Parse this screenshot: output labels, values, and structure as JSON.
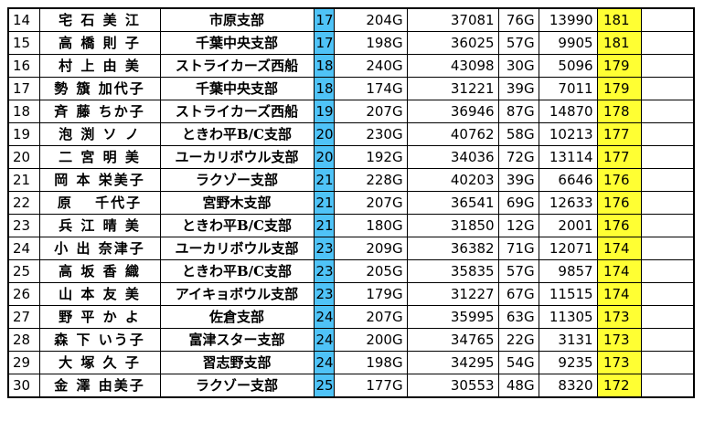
{
  "rows": [
    {
      "rank": "14",
      "name": "宅 石 美 江",
      "branch": "市原支部",
      "hdcp": "17",
      "games": "204G",
      "pins": "37081",
      "games2": "76G",
      "pins2": "13990",
      "total": "181"
    },
    {
      "rank": "15",
      "name": "高 橋 則 子",
      "branch": "千葉中央支部",
      "hdcp": "17",
      "games": "198G",
      "pins": "36025",
      "games2": "57G",
      "pins2": "9905",
      "total": "181"
    },
    {
      "rank": "16",
      "name": "村 上 由 美",
      "branch": "ストライカーズ西船",
      "hdcp": "18",
      "games": "240G",
      "pins": "43098",
      "games2": "30G",
      "pins2": "5096",
      "total": "179"
    },
    {
      "rank": "17",
      "name": "勢 籏 加代子",
      "branch": "千葉中央支部",
      "hdcp": "18",
      "games": "174G",
      "pins": "31221",
      "games2": "39G",
      "pins2": "7011",
      "total": "179"
    },
    {
      "rank": "18",
      "name": "斉 藤 ちか子",
      "branch": "ストライカーズ西船",
      "hdcp": "19",
      "games": "207G",
      "pins": "36946",
      "games2": "87G",
      "pins2": "14870",
      "total": "178"
    },
    {
      "rank": "19",
      "name": "泡 渕 ソ ノ",
      "branch": "ときわ平B/C支部",
      "hdcp": "20",
      "games": "230G",
      "pins": "40762",
      "games2": "58G",
      "pins2": "10213",
      "total": "177"
    },
    {
      "rank": "20",
      "name": "二 宮 明 美",
      "branch": "ユーカリボウル支部",
      "hdcp": "20",
      "games": "192G",
      "pins": "34036",
      "games2": "72G",
      "pins2": "13114",
      "total": "177"
    },
    {
      "rank": "21",
      "name": "岡 本 栄美子",
      "branch": "ラクゾー支部",
      "hdcp": "21",
      "games": "228G",
      "pins": "40203",
      "games2": "39G",
      "pins2": "6646",
      "total": "176"
    },
    {
      "rank": "22",
      "name": "原 　千代子",
      "branch": "宮野木支部",
      "hdcp": "21",
      "games": "207G",
      "pins": "36541",
      "games2": "69G",
      "pins2": "12633",
      "total": "176"
    },
    {
      "rank": "23",
      "name": "兵 江 晴 美",
      "branch": "ときわ平B/C支部",
      "hdcp": "21",
      "games": "180G",
      "pins": "31850",
      "games2": "12G",
      "pins2": "2001",
      "total": "176"
    },
    {
      "rank": "24",
      "name": "小 出 奈津子",
      "branch": "ユーカリボウル支部",
      "hdcp": "23",
      "games": "209G",
      "pins": "36382",
      "games2": "71G",
      "pins2": "12071",
      "total": "174"
    },
    {
      "rank": "25",
      "name": "高 坂 香 織",
      "branch": "ときわ平B/C支部",
      "hdcp": "23",
      "games": "205G",
      "pins": "35835",
      "games2": "57G",
      "pins2": "9857",
      "total": "174"
    },
    {
      "rank": "26",
      "name": "山 本 友 美",
      "branch": "アイキョボウル支部",
      "hdcp": "23",
      "games": "179G",
      "pins": "31227",
      "games2": "67G",
      "pins2": "11515",
      "total": "174"
    },
    {
      "rank": "27",
      "name": "野 平 か よ",
      "branch": "佐倉支部",
      "hdcp": "24",
      "games": "207G",
      "pins": "35995",
      "games2": "63G",
      "pins2": "11305",
      "total": "173"
    },
    {
      "rank": "28",
      "name": "森 下 いう子",
      "branch": "富津スター支部",
      "hdcp": "24",
      "games": "200G",
      "pins": "34765",
      "games2": "22G",
      "pins2": "3131",
      "total": "173"
    },
    {
      "rank": "29",
      "name": "大 塚 久 子",
      "branch": "習志野支部",
      "hdcp": "24",
      "games": "198G",
      "pins": "34295",
      "games2": "54G",
      "pins2": "9235",
      "total": "173"
    },
    {
      "rank": "30",
      "name": "金 澤 由美子",
      "branch": "ラクゾー支部",
      "hdcp": "25",
      "games": "177G",
      "pins": "30553",
      "games2": "48G",
      "pins2": "8320",
      "total": "172"
    }
  ],
  "colors": {
    "hdcp_bg": "#4fc3f7",
    "total_bg": "#ffff33"
  }
}
